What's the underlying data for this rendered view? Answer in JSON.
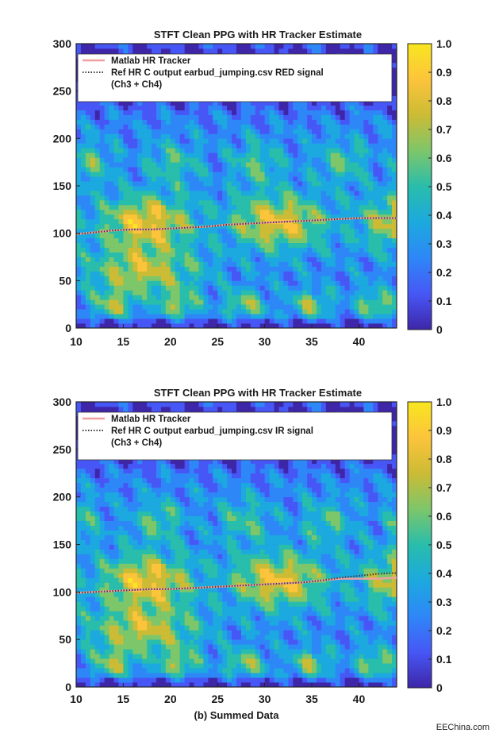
{
  "colors": {
    "tracker_line": "#f0a0a0",
    "reference_line": "#3a3a3a",
    "colormap": [
      "#3e26a8",
      "#4757f6",
      "#2e87f7",
      "#1ca9df",
      "#29bdab",
      "#7dc66a",
      "#ccbb35",
      "#fcc43b",
      "#f8e620"
    ]
  },
  "caption": "(b) Summed Data",
  "watermark": "EEChina.com",
  "chart_data": [
    {
      "type": "heatmap",
      "title": "STFT Clean PPG with HR Tracker Estimate",
      "xlabel": "",
      "ylabel": "",
      "xlim": [
        10,
        44
      ],
      "ylim": [
        0,
        300
      ],
      "x_ticks": [
        "10",
        "15",
        "20",
        "25",
        "30",
        "35",
        "40"
      ],
      "y_ticks": [
        "0",
        "50",
        "100",
        "150",
        "200",
        "250",
        "300"
      ],
      "colorbar": {
        "range": [
          0,
          1
        ],
        "ticks": [
          "0",
          "0.1",
          "0.2",
          "0.3",
          "0.4",
          "0.5",
          "0.6",
          "0.7",
          "0.8",
          "0.9",
          "1.0"
        ]
      },
      "legend": {
        "position": "top-left",
        "entries": [
          {
            "label": "Matlab HR Tracker",
            "style": "solid"
          },
          {
            "label": "Ref HR C output earbud_jumping.csv RED signal",
            "label2": "(Ch3 + Ch4)",
            "style": "dotted"
          }
        ]
      },
      "series": [
        {
          "key": "tracker",
          "x": [
            10,
            12,
            14,
            16,
            18,
            20,
            22,
            24,
            26,
            28,
            30,
            32,
            34,
            36,
            38,
            40,
            42,
            44
          ],
          "values": [
            99,
            101,
            103,
            104,
            104,
            105,
            106,
            107,
            109,
            110,
            111,
            112,
            113,
            114,
            115,
            116,
            116,
            116
          ]
        },
        {
          "key": "reference",
          "x": [
            10,
            12,
            14,
            16,
            18,
            20,
            22,
            24,
            26,
            28,
            30,
            32,
            34,
            36,
            38,
            40,
            42,
            44
          ],
          "values": [
            99,
            101,
            103,
            104,
            104,
            105,
            106,
            107,
            109,
            110,
            111,
            112,
            113,
            114,
            115,
            116,
            116,
            116
          ]
        }
      ]
    },
    {
      "type": "heatmap",
      "title": "STFT Clean PPG with HR Tracker Estimate",
      "xlabel": "",
      "ylabel": "",
      "xlim": [
        10,
        44
      ],
      "ylim": [
        0,
        300
      ],
      "x_ticks": [
        "10",
        "15",
        "20",
        "25",
        "30",
        "35",
        "40"
      ],
      "y_ticks": [
        "0",
        "50",
        "100",
        "150",
        "200",
        "250",
        "300"
      ],
      "colorbar": {
        "range": [
          0,
          1
        ],
        "ticks": [
          "0",
          "0.1",
          "0.2",
          "0.3",
          "0.4",
          "0.5",
          "0.6",
          "0.7",
          "0.8",
          "0.9",
          "1.0"
        ]
      },
      "legend": {
        "position": "top-left",
        "entries": [
          {
            "label": "Matlab HR Tracker",
            "style": "solid"
          },
          {
            "label": "Ref HR C output earbud_jumping.csv IR signal",
            "label2": "(Ch3 + Ch4)",
            "style": "dotted"
          }
        ]
      },
      "series": [
        {
          "key": "tracker",
          "x": [
            10,
            12,
            14,
            16,
            18,
            20,
            22,
            24,
            26,
            28,
            30,
            32,
            34,
            36,
            38,
            40,
            42,
            44
          ],
          "values": [
            99,
            100,
            101,
            102,
            103,
            103,
            104,
            105,
            106,
            107,
            108,
            109,
            110,
            112,
            114,
            114,
            114,
            115
          ]
        },
        {
          "key": "reference",
          "x": [
            10,
            12,
            14,
            16,
            18,
            20,
            22,
            24,
            26,
            28,
            30,
            32,
            34,
            36,
            38,
            40,
            42,
            44
          ],
          "values": [
            99,
            100,
            101,
            102,
            103,
            103,
            104,
            105,
            106,
            107,
            108,
            109,
            110,
            112,
            115,
            117,
            119,
            120
          ]
        }
      ]
    }
  ]
}
